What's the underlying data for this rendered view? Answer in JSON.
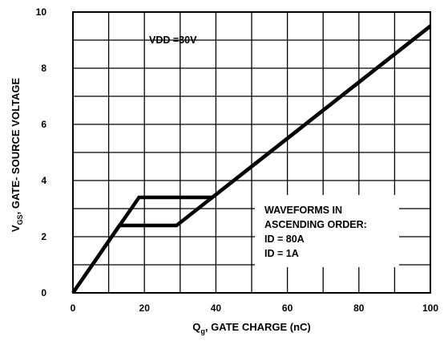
{
  "chart_data": {
    "type": "line",
    "title": "",
    "xlabel": {
      "main": "Q",
      "sub": "g",
      "rest": ", GATE CHARGE (nC)"
    },
    "ylabel": {
      "main": "V",
      "sub": "GS",
      "rest": ", GATE- SOURCE VOLTAGE"
    },
    "xlim": [
      0,
      100
    ],
    "ylim": [
      0,
      10
    ],
    "xticks": [
      0,
      20,
      40,
      60,
      80,
      100
    ],
    "yticks": [
      0,
      2,
      4,
      6,
      8,
      10
    ],
    "xtick_labels": [
      "0",
      "20",
      "40",
      "60",
      "80",
      "100"
    ],
    "ytick_labels": [
      "0",
      "2",
      "4",
      "6",
      "8",
      "10"
    ],
    "grid": true,
    "annotations": {
      "vdd": "VDD =30V",
      "legend_lines": [
        "WAVEFORMS IN",
        "ASCENDING ORDER:",
        "ID = 80A",
        "ID = 1A"
      ]
    },
    "series": [
      {
        "x": [
          0,
          13,
          29,
          100
        ],
        "y": [
          0,
          2.4,
          2.4,
          9.5
        ]
      },
      {
        "x": [
          0,
          18.5,
          39,
          100
        ],
        "y": [
          0,
          3.4,
          3.4,
          9.5
        ]
      }
    ],
    "line_color": "#000000"
  }
}
